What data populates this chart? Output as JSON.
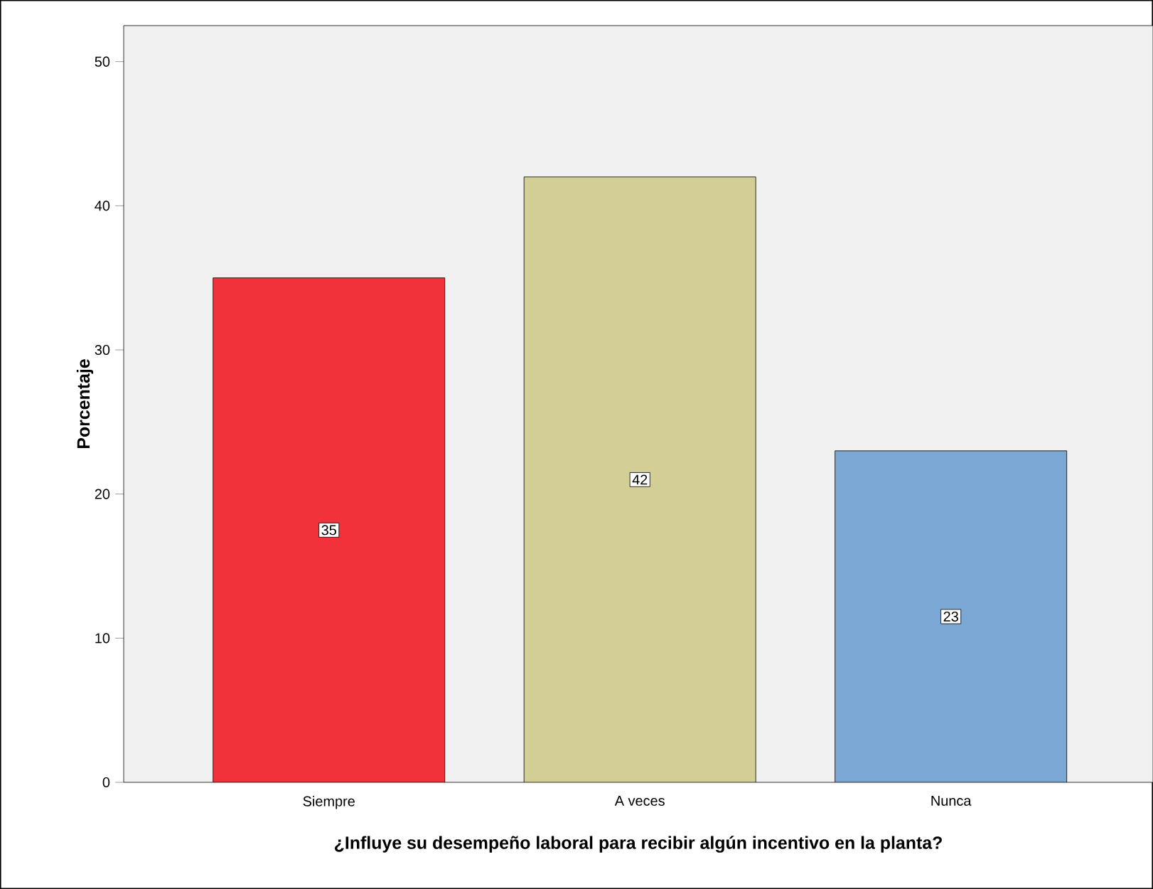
{
  "chart_data": {
    "type": "bar",
    "xlabel": "¿Influye su desempeño laboral para recibir algún incentivo en la planta?",
    "ylabel": "Porcentaje",
    "categories": [
      "Siempre",
      "A veces",
      "Nunca"
    ],
    "values": [
      35,
      42,
      23
    ],
    "colors": [
      "#f0323a",
      "#d2ce96",
      "#7ba7d4"
    ],
    "ylim": [
      0,
      52.5
    ],
    "yticks": [
      0,
      10,
      20,
      30,
      40,
      50
    ],
    "data_labels": true,
    "grid": false
  }
}
